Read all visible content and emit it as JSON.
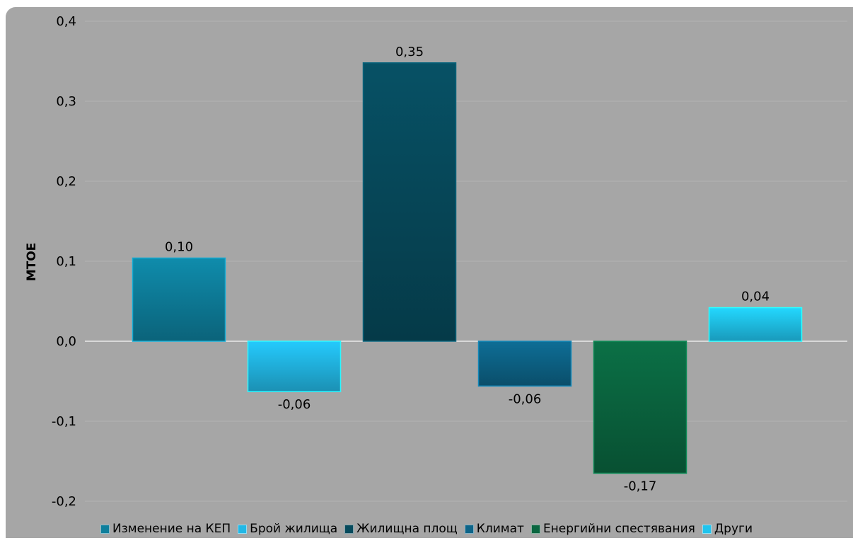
{
  "chart_data": {
    "type": "bar",
    "ylabel": "МТОЕ",
    "ylim": [
      -0.2,
      0.4
    ],
    "yticks": [
      "0,4",
      "0,3",
      "0,2",
      "0,1",
      "0,0",
      "-0,1",
      "-0,2"
    ],
    "ytick_values": [
      0.4,
      0.3,
      0.2,
      0.1,
      0.0,
      -0.1,
      -0.2
    ],
    "grid": true,
    "legend_position": "bottom",
    "series": [
      {
        "name": "Изменение на КЕП",
        "value": 0.104,
        "label": "0,10",
        "color": "#0e7f9c"
      },
      {
        "name": "Брой жилища",
        "value": -0.063,
        "label": "-0,06",
        "color": "#22b8e6"
      },
      {
        "name": "Жилищна площ",
        "value": 0.348,
        "label": "0,35",
        "color": "#064a5c"
      },
      {
        "name": "Климат",
        "value": -0.056,
        "label": "-0,06",
        "color": "#0d6488"
      },
      {
        "name": "Енергийни спестявания",
        "value": -0.165,
        "label": "-0,17",
        "color": "#0a6640"
      },
      {
        "name": "Други",
        "value": 0.042,
        "label": "0,04",
        "color": "#20c4ee"
      }
    ]
  }
}
